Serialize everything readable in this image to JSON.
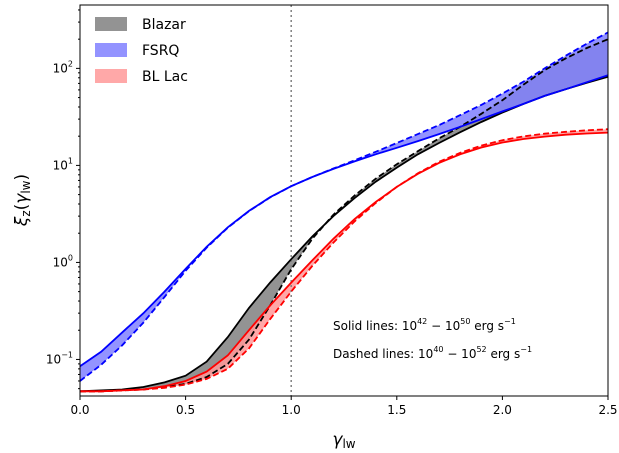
{
  "chart_data": {
    "type": "line",
    "xlabel": "γ_lw",
    "ylabel": "ξ_z(γ_lw)",
    "xlim": [
      0.0,
      2.5
    ],
    "ylim": [
      0.042,
      450
    ],
    "yscale": "log",
    "x_ticks": [
      "0.0",
      "0.5",
      "1.0",
      "1.5",
      "2.0",
      "2.5"
    ],
    "y_ticks": [
      {
        "value": 0.1,
        "base": "10",
        "exp": "−1"
      },
      {
        "value": 1,
        "base": "10",
        "exp": "0"
      },
      {
        "value": 10,
        "base": "10",
        "exp": "1"
      },
      {
        "value": 100,
        "base": "10",
        "exp": "2"
      }
    ],
    "vline": {
      "x": 1.0,
      "color": "#808080",
      "style": "dotted"
    },
    "legend": {
      "position": "top-left"
    },
    "annotations": {
      "solid": {
        "prefix": "Solid lines: 10",
        "exp1": "42",
        "mid": " − 10",
        "exp2": "50",
        "unit": " erg s",
        "exp3": "−1"
      },
      "dashed": {
        "prefix": "Dashed lines: 10",
        "exp1": "40",
        "mid": " − 10",
        "exp2": "52",
        "unit": " erg s",
        "exp3": "−1"
      }
    },
    "x": [
      0.0,
      0.1,
      0.2,
      0.3,
      0.4,
      0.5,
      0.6,
      0.7,
      0.8,
      0.9,
      1.0,
      1.1,
      1.2,
      1.3,
      1.4,
      1.5,
      1.6,
      1.7,
      1.8,
      1.9,
      2.0,
      2.1,
      2.2,
      2.3,
      2.4,
      2.5
    ],
    "series": [
      {
        "name": "Blazar",
        "color": "#000000",
        "fill": "#808080",
        "solid": [
          0.047,
          0.048,
          0.049,
          0.052,
          0.058,
          0.068,
          0.095,
          0.17,
          0.34,
          0.62,
          1.08,
          1.85,
          3.0,
          4.6,
          6.8,
          9.5,
          13.0,
          17.0,
          22.0,
          28.0,
          35.0,
          43.0,
          52.0,
          61.0,
          71.0,
          82.0
        ],
        "dashed": [
          0.047,
          0.047,
          0.048,
          0.049,
          0.052,
          0.056,
          0.066,
          0.09,
          0.16,
          0.36,
          0.85,
          1.75,
          3.1,
          4.9,
          7.3,
          10.3,
          14.0,
          19.0,
          25.0,
          34.0,
          47.0,
          68.0,
          96.0,
          127.0,
          162.0,
          200.0
        ]
      },
      {
        "name": "FSRQ",
        "color": "#0000ff",
        "fill": "#8080ff",
        "solid": [
          0.085,
          0.12,
          0.19,
          0.3,
          0.5,
          0.86,
          1.45,
          2.3,
          3.4,
          4.7,
          6.1,
          7.6,
          9.2,
          11.0,
          13.0,
          15.2,
          17.8,
          21.0,
          25.0,
          30.0,
          36.0,
          43.0,
          52.0,
          61.0,
          72.0,
          85.0
        ],
        "dashed": [
          0.06,
          0.088,
          0.14,
          0.24,
          0.44,
          0.82,
          1.42,
          2.28,
          3.38,
          4.68,
          6.1,
          7.6,
          9.3,
          11.3,
          13.8,
          17.0,
          21.0,
          26.0,
          33.0,
          42.0,
          55.0,
          73.0,
          100.0,
          135.0,
          180.0,
          235.0
        ]
      },
      {
        "name": "BL Lac",
        "color": "#ff0000",
        "fill": "#ff9999",
        "solid": [
          0.047,
          0.047,
          0.048,
          0.049,
          0.053,
          0.06,
          0.075,
          0.11,
          0.2,
          0.36,
          0.62,
          1.05,
          1.75,
          2.8,
          4.2,
          6.0,
          8.2,
          10.6,
          13.0,
          15.3,
          17.2,
          18.7,
          19.8,
          20.7,
          21.3,
          21.8
        ],
        "dashed": [
          0.047,
          0.047,
          0.048,
          0.049,
          0.051,
          0.055,
          0.063,
          0.08,
          0.13,
          0.26,
          0.5,
          0.92,
          1.6,
          2.65,
          4.1,
          6.0,
          8.3,
          10.9,
          13.5,
          16.0,
          18.2,
          19.9,
          21.2,
          22.2,
          23.0,
          23.6
        ]
      }
    ]
  }
}
